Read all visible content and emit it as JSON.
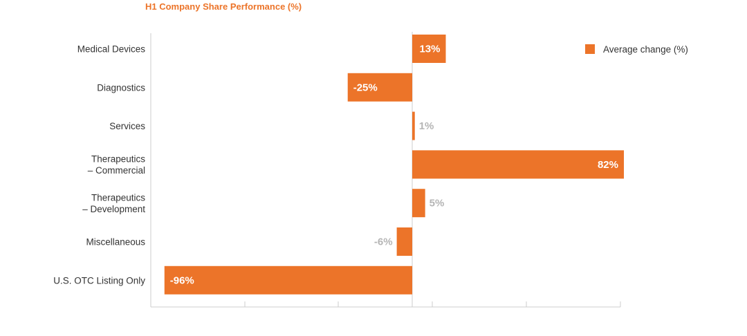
{
  "chart_data": {
    "type": "bar",
    "orientation": "horizontal",
    "title": "H1 Company Share Performance (%)",
    "categories": [
      "Medical Devices",
      "Diagnostics",
      "Services",
      "Therapeutics\n– Commercial",
      "Therapeutics\n– Development",
      "Miscellaneous",
      "U.S. OTC Listing Only"
    ],
    "series": [
      {
        "name": "Average change (%)",
        "values": [
          13,
          -25,
          1,
          82,
          5,
          -6,
          -96
        ],
        "data_labels": [
          "13%",
          "-25%",
          "1%",
          "82%",
          "5%",
          "-6%",
          "-96%"
        ]
      }
    ],
    "xlim": [
      -100,
      80
    ],
    "grid": false,
    "legend_position": "top-right"
  },
  "colors": {
    "bar": "#ec7429",
    "title": "#ec7429",
    "axis": "#cccccc",
    "label_outside": "#b5b5b5"
  }
}
